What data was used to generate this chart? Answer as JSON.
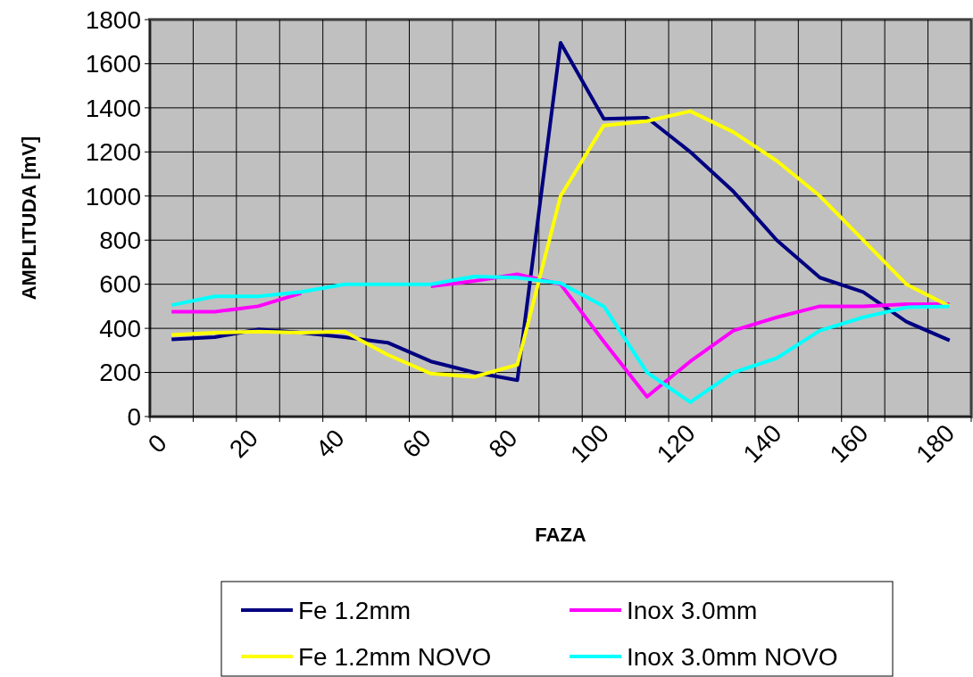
{
  "chart_data": {
    "type": "line",
    "xlabel": "FAZA",
    "ylabel": "AMPLITUDA [mV]",
    "x": [
      5,
      15,
      25,
      35,
      45,
      55,
      65,
      75,
      85,
      95,
      105,
      115,
      125,
      135,
      145,
      155,
      165,
      175,
      185
    ],
    "series": [
      {
        "name": "Fe 1.2mm",
        "color": "#000080",
        "values": [
          350,
          360,
          395,
          380,
          360,
          335,
          250,
          200,
          165,
          1695,
          1350,
          1355,
          1200,
          1020,
          800,
          630,
          565,
          430,
          345
        ]
      },
      {
        "name": "Inox 3.0mm",
        "color": "#ff00ff",
        "values": [
          475,
          475,
          500,
          560,
          null,
          null,
          590,
          615,
          645,
          600,
          340,
          90,
          250,
          390,
          450,
          500,
          500,
          510,
          510
        ]
      },
      {
        "name": "Fe 1.2mm NOVO",
        "color": "#ffff00",
        "values": [
          370,
          380,
          385,
          380,
          385,
          280,
          195,
          180,
          235,
          1000,
          1320,
          1340,
          1385,
          1290,
          1160,
          1000,
          800,
          600,
          500
        ]
      },
      {
        "name": "Inox 3.0mm NOVO",
        "color": "#00ffff",
        "values": [
          505,
          545,
          545,
          565,
          600,
          600,
          600,
          635,
          630,
          605,
          500,
          200,
          65,
          200,
          265,
          390,
          450,
          495,
          500
        ]
      }
    ],
    "xlim": [
      0,
      190
    ],
    "xticks": [
      0,
      {
        "value": 10,
        "label": null
      },
      20,
      {
        "value": 30,
        "label": null
      },
      40,
      {
        "value": 50,
        "label": null
      },
      60,
      {
        "value": 70,
        "label": null
      },
      80,
      {
        "value": 90,
        "label": null
      },
      100,
      {
        "value": 110,
        "label": null
      },
      120,
      {
        "value": 130,
        "label": null
      },
      140,
      {
        "value": 150,
        "label": null
      },
      160,
      {
        "value": 170,
        "label": null
      },
      180,
      {
        "value": 190,
        "label": null
      }
    ],
    "ylim": [
      0,
      1800
    ],
    "yticks": [
      0,
      200,
      400,
      600,
      800,
      1000,
      1200,
      1400,
      1600,
      1800
    ],
    "grid": true,
    "legend": "bottom",
    "marker": "none",
    "line_style": "solid"
  }
}
